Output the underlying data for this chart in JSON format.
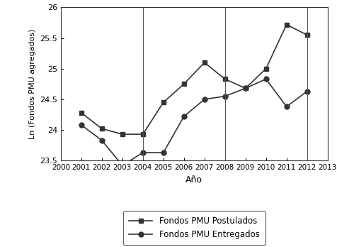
{
  "years_postulados": [
    2001,
    2002,
    2003,
    2004,
    2005,
    2006,
    2007,
    2008,
    2009,
    2010,
    2011,
    2012
  ],
  "values_postulados": [
    24.28,
    24.02,
    23.93,
    23.93,
    24.45,
    24.75,
    25.1,
    24.83,
    24.68,
    25.0,
    25.72,
    25.55
  ],
  "years_entregados": [
    2001,
    2002,
    2003,
    2004,
    2005,
    2006,
    2007,
    2008,
    2009,
    2010,
    2011,
    2012
  ],
  "values_entregados": [
    24.08,
    23.83,
    23.42,
    23.63,
    23.63,
    24.22,
    24.5,
    24.55,
    24.68,
    24.83,
    24.38,
    24.63
  ],
  "vlines": [
    2004,
    2008,
    2012
  ],
  "xlim": [
    2000,
    2013
  ],
  "ylim": [
    23.5,
    26.0
  ],
  "yticks": [
    23.5,
    24.0,
    24.5,
    25.0,
    25.5,
    26.0
  ],
  "ytick_labels": [
    "23.5",
    "24",
    "24.5",
    "25",
    "25.5",
    "26"
  ],
  "xticks": [
    2000,
    2001,
    2002,
    2003,
    2004,
    2005,
    2006,
    2007,
    2008,
    2009,
    2010,
    2011,
    2012,
    2013
  ],
  "xlabel": "Año",
  "ylabel": "Ln (Fondos PMU agregados)",
  "legend_postulados": "Fondos PMU Postulados",
  "legend_entregados": "Fondos PMU Entregados",
  "line_color": "#333333",
  "background_color": "#ffffff"
}
